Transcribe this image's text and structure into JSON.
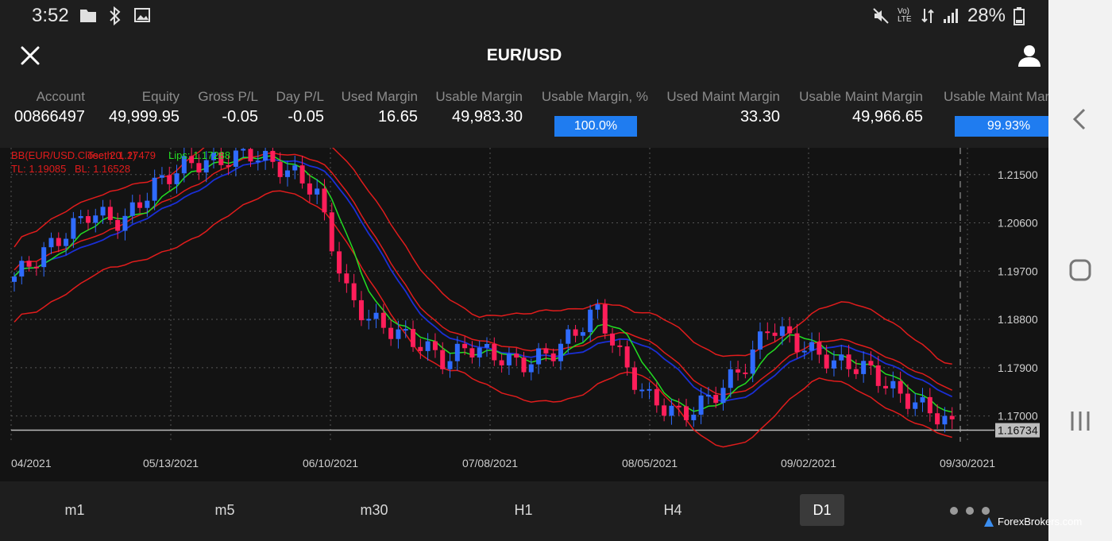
{
  "status": {
    "time": "3:52",
    "network": "Vo) LTE",
    "battery": "28%"
  },
  "header": {
    "title": "EUR/USD"
  },
  "account_strip": [
    {
      "label": "Account",
      "value": "00866497"
    },
    {
      "label": "Equity",
      "value": "49,999.95"
    },
    {
      "label": "Gross P/L",
      "value": "-0.05"
    },
    {
      "label": "Day P/L",
      "value": "-0.05"
    },
    {
      "label": "Used Margin",
      "value": "16.65"
    },
    {
      "label": "Usable Margin",
      "value": "49,983.30"
    },
    {
      "label": "Usable Margin, %",
      "value": "100.0%",
      "fill": 1.0
    },
    {
      "label": "Used Maint Margin",
      "value": "33.30"
    },
    {
      "label": "Usable Maint Margin",
      "value": "49,966.65"
    },
    {
      "label": "Usable Maint Margin",
      "value": "99.93%",
      "fill": 0.9993
    }
  ],
  "chart_data": {
    "type": "candlestick",
    "symbol": "EUR/USD",
    "indicator_labels": {
      "bb": "BB(EUR/USD.Close, 20, 2)",
      "teeth": "Teeth: 1.17479",
      "lips": "Lips: 1.17288",
      "tl": "TL: 1.19085",
      "bl": "BL: 1.16528"
    },
    "y_ticks": [
      "1.21500",
      "1.20600",
      "1.19700",
      "1.18800",
      "1.17900",
      "1.17000"
    ],
    "y_range": [
      1.1652,
      1.22
    ],
    "current_price": "1.16734",
    "current_price_value": 1.16734,
    "x_ticks": [
      "04/2021",
      "05/13/2021",
      "06/10/2021",
      "07/08/2021",
      "08/05/2021",
      "09/02/2021",
      "09/30/2021"
    ],
    "grid": true,
    "colors": {
      "up": "#2f6bff",
      "down": "#ff1e5a",
      "bollinger": "#e01c1c",
      "ma_blue": "#1a2fd6",
      "ma_green": "#22dd22",
      "grid": "#555555",
      "price_line": "#bbbbbb"
    }
  },
  "timeframes": [
    {
      "label": "m1",
      "active": false
    },
    {
      "label": "m5",
      "active": false
    },
    {
      "label": "m30",
      "active": false
    },
    {
      "label": "H1",
      "active": false
    },
    {
      "label": "H4",
      "active": false
    },
    {
      "label": "D1",
      "active": true
    }
  ],
  "watermark": {
    "text": "ForexBrokers.com"
  },
  "icons": {
    "close": "close-icon",
    "user": "user-icon",
    "back": "chevron-left-icon",
    "home": "home-icon",
    "recents": "recents-icon"
  }
}
